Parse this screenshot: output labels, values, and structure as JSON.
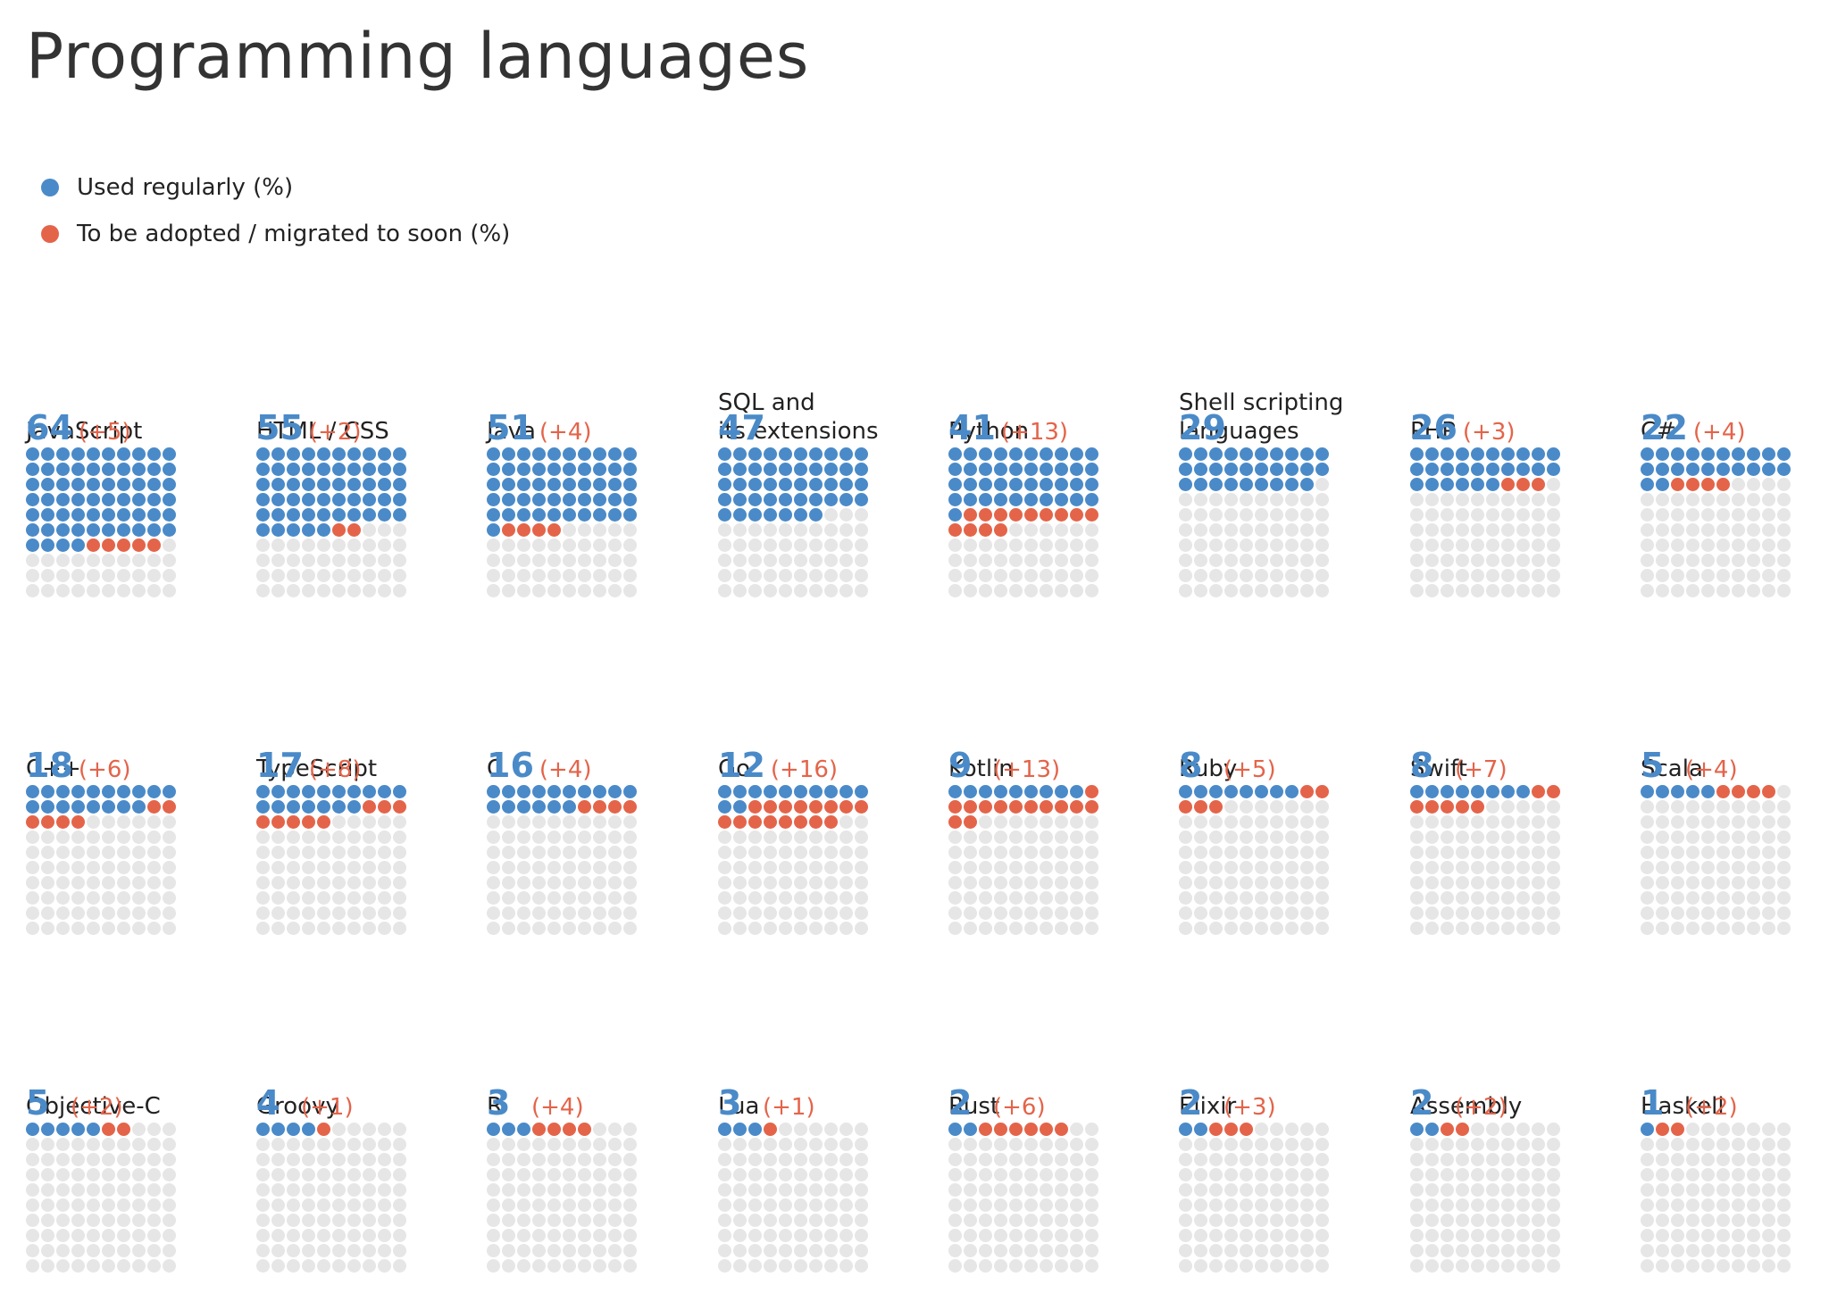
{
  "page": {
    "title": "Programming languages"
  },
  "legend": {
    "used_label": "Used regularly (%)",
    "adopt_label": "To be adopted / migrated to soon (%)"
  },
  "colors": {
    "used": "#4a8ac8",
    "adopt": "#e4644a",
    "empty": "#e6e6e6"
  },
  "chart_data": {
    "type": "waffle",
    "title": "Programming languages",
    "grid": "10x10",
    "series": [
      {
        "name": "Used regularly (%)"
      },
      {
        "name": "To be adopted / migrated to soon (%)"
      }
    ],
    "items": [
      {
        "name": "JavaScript",
        "used": 64,
        "adopt": 5,
        "used_text": "64",
        "adopt_text": "(+5)"
      },
      {
        "name": "HTML / CSS",
        "used": 55,
        "adopt": 2,
        "used_text": "55",
        "adopt_text": "(+2)"
      },
      {
        "name": "Java",
        "used": 51,
        "adopt": 4,
        "used_text": "51",
        "adopt_text": "(+4)"
      },
      {
        "name": "SQL and\nits extensions",
        "used": 47,
        "adopt": 0,
        "used_text": "47",
        "adopt_text": ""
      },
      {
        "name": "Python",
        "used": 41,
        "adopt": 13,
        "used_text": "41",
        "adopt_text": "(+13)"
      },
      {
        "name": "Shell scripting\nlanguages",
        "used": 29,
        "adopt": 0,
        "used_text": "29",
        "adopt_text": ""
      },
      {
        "name": "PHP",
        "used": 26,
        "adopt": 3,
        "used_text": "26",
        "adopt_text": "(+3)"
      },
      {
        "name": "C#",
        "used": 22,
        "adopt": 4,
        "used_text": "22",
        "adopt_text": "(+4)"
      },
      {
        "name": "C++",
        "used": 18,
        "adopt": 6,
        "used_text": "18",
        "adopt_text": "(+6)"
      },
      {
        "name": "TypeScript",
        "used": 17,
        "adopt": 8,
        "used_text": "17",
        "adopt_text": "(+8)"
      },
      {
        "name": "C",
        "used": 16,
        "adopt": 4,
        "used_text": "16",
        "adopt_text": "(+4)"
      },
      {
        "name": "Go",
        "used": 12,
        "adopt": 16,
        "used_text": "12",
        "adopt_text": "(+16)"
      },
      {
        "name": "Kotlin",
        "used": 9,
        "adopt": 13,
        "used_text": "9",
        "adopt_text": "(+13)"
      },
      {
        "name": "Ruby",
        "used": 8,
        "adopt": 5,
        "used_text": "8",
        "adopt_text": "(+5)"
      },
      {
        "name": "Swift",
        "used": 8,
        "adopt": 7,
        "used_text": "8",
        "adopt_text": "(+7)"
      },
      {
        "name": "Scala",
        "used": 5,
        "adopt": 4,
        "used_text": "5",
        "adopt_text": "(+4)"
      },
      {
        "name": "Objective-C",
        "used": 5,
        "adopt": 2,
        "used_text": "5",
        "adopt_text": "(+2)"
      },
      {
        "name": "Groovy",
        "used": 4,
        "adopt": 1,
        "used_text": "4",
        "adopt_text": "(+1)"
      },
      {
        "name": "R",
        "used": 3,
        "adopt": 4,
        "used_text": "3",
        "adopt_text": "(+4)"
      },
      {
        "name": "Lua",
        "used": 3,
        "adopt": 1,
        "used_text": "3",
        "adopt_text": "(+1)"
      },
      {
        "name": "Rust",
        "used": 2,
        "adopt": 6,
        "used_text": "2",
        "adopt_text": "(+6)"
      },
      {
        "name": "Elixir",
        "used": 2,
        "adopt": 3,
        "used_text": "2",
        "adopt_text": "(+3)"
      },
      {
        "name": "Assembly",
        "used": 2,
        "adopt": 2,
        "used_text": "2",
        "adopt_text": "(+2)"
      },
      {
        "name": "Haskell",
        "used": 1,
        "adopt": 2,
        "used_text": "1",
        "adopt_text": "(+2)"
      }
    ]
  }
}
